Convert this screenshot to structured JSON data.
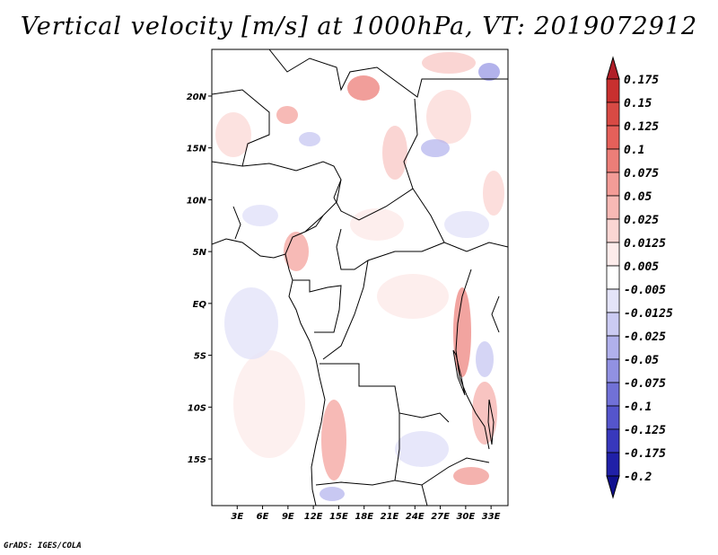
{
  "title": "Vertical velocity [m/s] at 1000hPa, VT: 2019072912",
  "credit": "GrADS: IGES/COLA",
  "map": {
    "lat_ticks": [
      "20N",
      "15N",
      "10N",
      "5N",
      "EQ",
      "5S",
      "10S",
      "15S"
    ],
    "lat_values": [
      20,
      15,
      10,
      5,
      0,
      -5,
      -10,
      -15
    ],
    "lon_ticks": [
      "3E",
      "6E",
      "9E",
      "12E",
      "15E",
      "18E",
      "21E",
      "24E",
      "27E",
      "30E",
      "33E"
    ],
    "lon_values": [
      3,
      6,
      9,
      12,
      15,
      18,
      21,
      24,
      27,
      30,
      33
    ],
    "lat_range": [
      -19.5,
      24.5
    ],
    "lon_range": [
      0,
      35
    ]
  },
  "colorbar": {
    "labels": [
      "0.175",
      "0.15",
      "0.125",
      "0.1",
      "0.075",
      "0.05",
      "0.025",
      "0.0125",
      "0.005",
      "-0.005",
      "-0.0125",
      "-0.025",
      "-0.05",
      "-0.075",
      "-0.1",
      "-0.125",
      "-0.175",
      "-0.2"
    ],
    "colors": [
      "#b01e28",
      "#c8302f",
      "#d84a44",
      "#e5605a",
      "#ec7e78",
      "#f39c97",
      "#f7b9b5",
      "#fbd6d3",
      "#fdeceb",
      "#ffffff",
      "#e4e4f9",
      "#cbcbf3",
      "#b0b0ec",
      "#9191e2",
      "#7171d7",
      "#5555cc",
      "#3838bc",
      "#2020a8",
      "#10108f"
    ]
  }
}
